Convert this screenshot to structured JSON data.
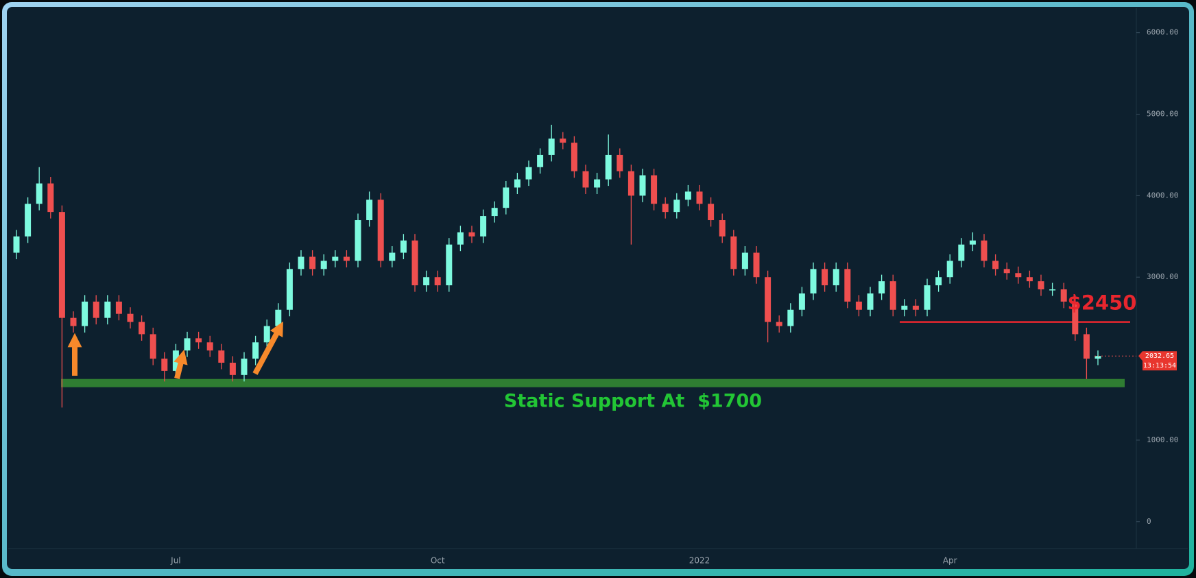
{
  "chart_data": {
    "type": "candlestick",
    "categories": [
      null,
      null,
      null,
      null,
      null,
      null,
      null,
      null,
      null,
      null,
      null,
      null,
      null,
      null,
      "Jul",
      null,
      null,
      null,
      null,
      null,
      null,
      null,
      null,
      null,
      null,
      null,
      null,
      null,
      null,
      null,
      null,
      null,
      null,
      null,
      null,
      null,
      null,
      "Oct",
      null,
      null,
      null,
      null,
      null,
      null,
      null,
      null,
      null,
      null,
      null,
      null,
      null,
      null,
      null,
      null,
      null,
      null,
      null,
      null,
      null,
      null,
      "2022",
      null,
      null,
      null,
      null,
      null,
      null,
      null,
      null,
      null,
      null,
      null,
      null,
      null,
      null,
      null,
      null,
      null,
      null,
      null,
      null,
      null,
      "Apr",
      null,
      null,
      null,
      null,
      null,
      null,
      null,
      null,
      null,
      null,
      null,
      null,
      null
    ],
    "open": [
      3300,
      3500,
      3900,
      4150,
      3800,
      2500,
      2400,
      2700,
      2500,
      2700,
      2550,
      2450,
      2300,
      2000,
      1850,
      2100,
      2250,
      2200,
      2100,
      1950,
      1800,
      2000,
      2200,
      2400,
      2600,
      3100,
      3250,
      3100,
      3200,
      3250,
      3200,
      3700,
      3950,
      3200,
      3300,
      3450,
      2900,
      3000,
      2900,
      3400,
      3550,
      3500,
      3750,
      3850,
      4100,
      4200,
      4350,
      4500,
      4700,
      4650,
      4300,
      4100,
      4200,
      4500,
      4300,
      4000,
      4250,
      3900,
      3800,
      3950,
      4050,
      3900,
      3700,
      3500,
      3100,
      3300,
      3000,
      2450,
      2400,
      2600,
      2800,
      3100,
      2900,
      3100,
      2700,
      2600,
      2800,
      2950,
      2600,
      2650,
      2600,
      2900,
      3000,
      3200,
      3400,
      3450,
      3200,
      3100,
      3050,
      3000,
      2950,
      2850,
      2850,
      2700,
      2300,
      2000
    ],
    "high": [
      3580,
      3980,
      4350,
      4230,
      3880,
      2580,
      2780,
      2780,
      2780,
      2780,
      2630,
      2530,
      2380,
      2080,
      2180,
      2330,
      2330,
      2280,
      2180,
      2030,
      2080,
      2280,
      2480,
      2680,
      3180,
      3330,
      3330,
      3280,
      3330,
      3330,
      3780,
      4050,
      4030,
      3380,
      3530,
      3530,
      3080,
      3080,
      3480,
      3630,
      3630,
      3830,
      3930,
      4180,
      4280,
      4430,
      4580,
      4870,
      4780,
      4730,
      4380,
      4280,
      4750,
      4580,
      4380,
      4330,
      4330,
      3980,
      4030,
      4130,
      4130,
      3980,
      3780,
      3580,
      3380,
      3380,
      3080,
      2530,
      2680,
      2880,
      3180,
      3180,
      3180,
      3180,
      2780,
      2880,
      3030,
      3030,
      2730,
      2730,
      2980,
      3080,
      3280,
      3480,
      3550,
      3530,
      3280,
      3180,
      3130,
      3080,
      3030,
      2930,
      2930,
      2780,
      2380,
      2100
    ],
    "low": [
      3220,
      3420,
      3820,
      3720,
      1400,
      2320,
      2320,
      2420,
      2420,
      2470,
      2370,
      2220,
      1920,
      1720,
      1770,
      2020,
      2120,
      2020,
      1870,
      1720,
      1720,
      1920,
      2120,
      2320,
      2520,
      3020,
      3020,
      3020,
      3120,
      3120,
      3120,
      3620,
      3120,
      3120,
      3220,
      2820,
      2820,
      2820,
      2820,
      3320,
      3420,
      3420,
      3670,
      3770,
      4020,
      4120,
      4270,
      4420,
      4570,
      4220,
      4020,
      4020,
      4120,
      4220,
      3400,
      3920,
      3820,
      3720,
      3720,
      3870,
      3820,
      3620,
      3420,
      3020,
      3020,
      2920,
      2200,
      2320,
      2320,
      2520,
      2720,
      2820,
      2820,
      2620,
      2520,
      2520,
      2720,
      2520,
      2520,
      2520,
      2520,
      2820,
      2920,
      3120,
      3320,
      3120,
      3020,
      2970,
      2920,
      2870,
      2770,
      2770,
      2620,
      2220,
      1750,
      1920
    ],
    "close": [
      3500,
      3900,
      4150,
      3800,
      2500,
      2400,
      2700,
      2500,
      2700,
      2550,
      2450,
      2300,
      2000,
      1850,
      2100,
      2250,
      2200,
      2100,
      1950,
      1800,
      2000,
      2200,
      2400,
      2600,
      3100,
      3250,
      3100,
      3200,
      3250,
      3200,
      3700,
      3950,
      3200,
      3300,
      3450,
      2900,
      3000,
      2900,
      3400,
      3550,
      3500,
      3750,
      3850,
      4100,
      4200,
      4350,
      4500,
      4700,
      4650,
      4300,
      4100,
      4200,
      4500,
      4300,
      4000,
      4250,
      3900,
      3800,
      3950,
      4050,
      3900,
      3700,
      3500,
      3100,
      3300,
      3000,
      2450,
      2400,
      2600,
      2800,
      3100,
      2900,
      3100,
      2700,
      2600,
      2800,
      2950,
      2600,
      2650,
      2600,
      2900,
      3000,
      3200,
      3400,
      3450,
      3200,
      3100,
      3050,
      3000,
      2950,
      2850,
      2850,
      2700,
      2300,
      2000,
      2032.65
    ],
    "up_color": "#7dfadf",
    "down_color": "#ef4f4f",
    "ylim": [
      -330,
      6300
    ],
    "yticks": [
      0,
      {
        "value": 1000,
        "label": "1000.00"
      },
      {
        "value": 3000,
        "label": "3000.00"
      },
      {
        "value": 4000,
        "label": "4000.00"
      },
      {
        "value": 5000,
        "label": "5000.00"
      },
      {
        "value": 6000,
        "label": "6000.00"
      }
    ],
    "last_price": {
      "value": 2032.65,
      "countdown": "13:13:54"
    },
    "resistance": {
      "value": 2450,
      "label": "$2450",
      "color": "#e8262e"
    },
    "support": {
      "value": 1700,
      "label": "Static Support At  $1700",
      "color": "#2f7d32",
      "label_color": "#22c535"
    }
  }
}
